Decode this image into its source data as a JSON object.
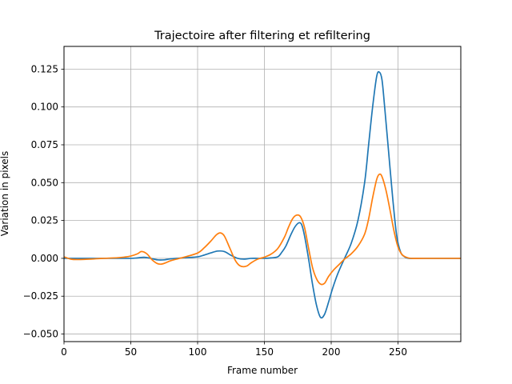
{
  "chart_data": {
    "type": "line",
    "title": "Trajectoire after filtering et refiltering",
    "xlabel": "Frame number",
    "ylabel": "Variation in pixels",
    "xlim": [
      0,
      297
    ],
    "ylim": [
      -0.055,
      0.14
    ],
    "grid": true,
    "legend": "none",
    "xticks": [
      0,
      50,
      100,
      150,
      200,
      250
    ],
    "xtick_labels": [
      "0",
      "50",
      "100",
      "150",
      "200",
      "250"
    ],
    "yticks": [
      -0.05,
      -0.025,
      0.0,
      0.025,
      0.05,
      0.075,
      0.1,
      0.125
    ],
    "ytick_labels": [
      "−0.050",
      "−0.025",
      "0.000",
      "0.025",
      "0.050",
      "0.075",
      "0.100",
      "0.125"
    ],
    "series": [
      {
        "color": "#1f77b4",
        "x": [
          0,
          10,
          20,
          30,
          40,
          50,
          55,
          60,
          65,
          70,
          75,
          80,
          90,
          100,
          105,
          110,
          115,
          120,
          125,
          130,
          135,
          140,
          145,
          150,
          155,
          160,
          163,
          166,
          170,
          173,
          176,
          178,
          180,
          183,
          186,
          189,
          192,
          195,
          198,
          201,
          205,
          210,
          215,
          220,
          225,
          228,
          231,
          234,
          236,
          238,
          240,
          243,
          246,
          249,
          252,
          255,
          258,
          262,
          270,
          280,
          297
        ],
        "y": [
          0.0,
          0.0,
          0.0,
          0.0,
          0.0,
          0.0,
          0.0003,
          0.0007,
          0.0,
          -0.001,
          -0.001,
          -0.0003,
          0.0004,
          0.001,
          0.0022,
          0.0036,
          0.0048,
          0.0045,
          0.002,
          0.0,
          -0.0005,
          0.0,
          0.0,
          0.0,
          0.0003,
          0.001,
          0.004,
          0.008,
          0.016,
          0.021,
          0.0235,
          0.022,
          0.015,
          0.0,
          -0.017,
          -0.031,
          -0.039,
          -0.037,
          -0.029,
          -0.02,
          -0.01,
          0.0,
          0.01,
          0.025,
          0.05,
          0.075,
          0.1,
          0.12,
          0.123,
          0.118,
          0.1,
          0.07,
          0.04,
          0.015,
          0.004,
          0.001,
          0.0,
          0.0,
          0.0,
          0.0,
          0.0
        ]
      },
      {
        "color": "#ff7f0e",
        "x": [
          0,
          5,
          10,
          20,
          30,
          40,
          45,
          50,
          55,
          58,
          62,
          66,
          70,
          73,
          76,
          80,
          90,
          100,
          105,
          110,
          114,
          117,
          120,
          124,
          128,
          131,
          134,
          137,
          140,
          145,
          150,
          155,
          160,
          165,
          168,
          171,
          174,
          177,
          180,
          183,
          186,
          189,
          192,
          195,
          198,
          202,
          206,
          210,
          215,
          220,
          225,
          228,
          231,
          234,
          236,
          238,
          241,
          244,
          247,
          250,
          253,
          256,
          260,
          270,
          297
        ],
        "y": [
          0.001,
          -0.0005,
          -0.0008,
          -0.0005,
          0.0,
          0.0004,
          0.0008,
          0.0015,
          0.003,
          0.0045,
          0.003,
          -0.001,
          -0.0035,
          -0.0038,
          -0.003,
          -0.0015,
          0.0008,
          0.0035,
          0.007,
          0.0115,
          0.0155,
          0.0168,
          0.0148,
          0.007,
          -0.001,
          -0.0045,
          -0.0055,
          -0.005,
          -0.003,
          -0.0005,
          0.0008,
          0.0028,
          0.0065,
          0.014,
          0.0205,
          0.026,
          0.0285,
          0.0275,
          0.0205,
          0.007,
          -0.006,
          -0.0135,
          -0.017,
          -0.0165,
          -0.012,
          -0.0075,
          -0.004,
          -0.0005,
          0.003,
          0.008,
          0.016,
          0.026,
          0.04,
          0.052,
          0.0555,
          0.054,
          0.045,
          0.032,
          0.018,
          0.0075,
          0.0025,
          0.0008,
          0.0,
          0.0,
          0.0
        ]
      }
    ]
  }
}
